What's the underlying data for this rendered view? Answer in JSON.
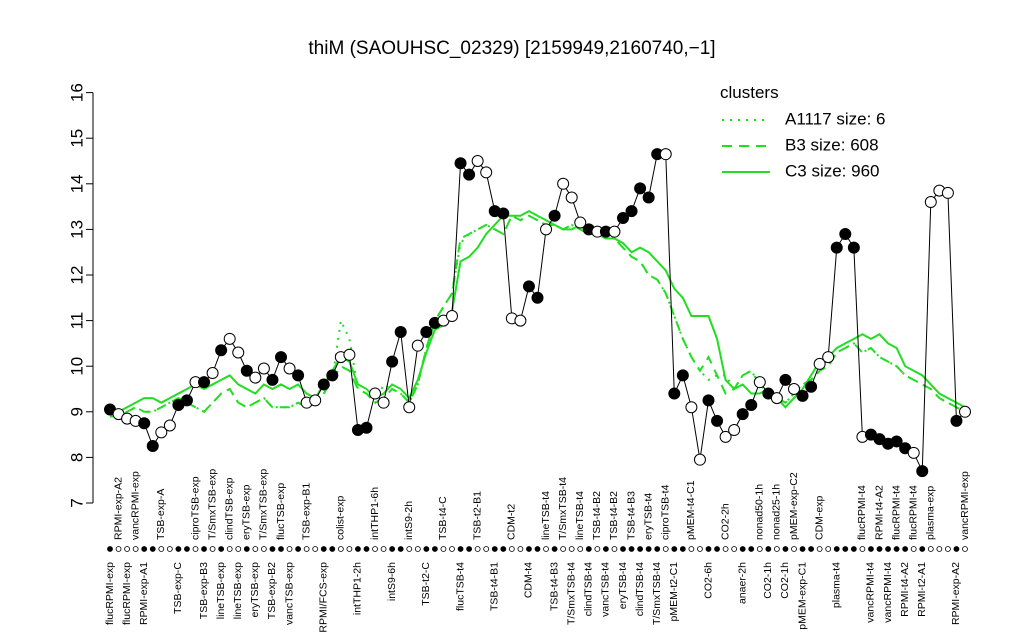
{
  "chart_data": {
    "type": "line",
    "title": "thiM (SAOUHSC_02329) [2159949,2160740,−1]",
    "ylim": [
      7,
      16
    ],
    "yticks": [
      7,
      8,
      9,
      10,
      11,
      12,
      13,
      14,
      15,
      16
    ],
    "line_color": "#000000",
    "categories": [
      "flucRPMI-exp",
      "RPMI-exp-A2",
      "flucRPMI-exp",
      "vancRPMI-exp",
      "RPMI-exp-A1",
      null,
      "TSB-exp-A",
      null,
      "TSB-exp-C",
      null,
      "ciproTSB-exp",
      "TSB-exp-B3",
      "T/SmxTSB-exp",
      "lineTSB-exp",
      "clindTSB-exp",
      "lineTSB-exp",
      "eryTSB-exp",
      "eryTSB-exp",
      "T/SmxTSB-exp",
      "TSB-exp-B2",
      "flucTSB-exp",
      "vancTSB-exp",
      null,
      "TSB-exp-B1",
      null,
      "RPMI/FCS-exp",
      null,
      "colist-exp",
      null,
      "intTHP1-2h",
      null,
      "intTHP1-6h",
      null,
      "intS9-6h",
      null,
      "intS9-2h",
      null,
      "TSB-t2-C",
      null,
      "TSB-t4-C",
      null,
      "flucTSB-t4",
      null,
      "TSB-t2-B1",
      null,
      "TSB-t4-B1",
      null,
      "CDM-t2",
      null,
      "CDM-t4",
      null,
      "lineTSB-t4",
      "TSB-t4-B3",
      "T/SmxTSB-t4",
      "T/SmxTSB-t4",
      "lineTSB-t4",
      "clindTSB-t4",
      "TSB-t4-B2",
      "vancTSB-t4",
      "TSB-t4-B2",
      "eryTSB-t4",
      "TSB-t4-B3",
      "clindTSB-t4",
      "eryTSB-t4",
      "T/SmxTSB-t4",
      "ciproTSB-t4",
      "pMEM-t2-C1",
      null,
      "pMEM-t4-C1",
      null,
      "CO2-6h",
      null,
      "CO2-2h",
      null,
      "anaer-2h",
      null,
      "nonad50-1h",
      "CO2-1h",
      "nonad25-1h",
      "CO2-1h",
      "pMEM-exp-C2",
      "pMEM-exp-C1",
      null,
      "CDM-exp",
      null,
      "plasma-t4",
      null,
      null,
      "flucRPMI-t4",
      "vancRPMI-t4",
      "RPMI-t4-A2",
      "vancRPMI-t4",
      "flucRPMI-t4",
      "RPMI-t4-A2",
      "flucRPMI-t4",
      "RPMI-t2-A1",
      "plasma-exp",
      null,
      null,
      "RPMI-exp-A2",
      "vancRPMI-exp"
    ],
    "values": [
      9.05,
      8.95,
      8.85,
      8.8,
      8.75,
      8.25,
      8.55,
      8.7,
      9.15,
      9.25,
      9.65,
      9.65,
      9.85,
      10.35,
      10.6,
      10.3,
      9.9,
      9.75,
      9.95,
      9.7,
      10.2,
      9.95,
      9.8,
      9.2,
      9.25,
      9.6,
      9.8,
      10.2,
      10.25,
      8.6,
      8.65,
      9.4,
      9.2,
      10.1,
      10.75,
      9.1,
      10.45,
      10.75,
      10.95,
      11.0,
      11.1,
      14.45,
      14.2,
      14.5,
      14.25,
      13.4,
      13.35,
      11.05,
      11.0,
      11.75,
      11.5,
      13.0,
      13.3,
      14.0,
      13.7,
      13.15,
      13.0,
      12.95,
      12.95,
      12.95,
      13.25,
      13.4,
      13.9,
      13.7,
      14.65,
      14.65,
      9.4,
      9.8,
      9.1,
      7.95,
      9.25,
      8.8,
      8.45,
      8.6,
      8.95,
      9.15,
      9.65,
      9.4,
      9.3,
      9.7,
      9.5,
      9.35,
      9.55,
      10.05,
      10.2,
      12.6,
      12.9,
      12.6,
      8.45,
      8.5,
      8.4,
      8.3,
      8.35,
      8.2,
      8.1,
      7.7,
      13.6,
      13.85,
      13.8,
      8.8,
      9.0
    ],
    "marker_fills": [
      "black",
      "white",
      "white",
      "white",
      "black",
      "black",
      "white",
      "white",
      "black",
      "black",
      "white",
      "black",
      "white",
      "black",
      "white",
      "white",
      "black",
      "white",
      "white",
      "black",
      "black",
      "white",
      "black",
      "white",
      "white",
      "black",
      "black",
      "white",
      "white",
      "black",
      "black",
      "white",
      "white",
      "black",
      "black",
      "white",
      "white",
      "black",
      "black",
      "white",
      "white",
      "black",
      "black",
      "white",
      "white",
      "black",
      "black",
      "white",
      "white",
      "black",
      "black",
      "white",
      "black",
      "white",
      "white",
      "white",
      "black",
      "white",
      "black",
      "white",
      "black",
      "black",
      "black",
      "black",
      "black",
      "white",
      "black",
      "black",
      "white",
      "white",
      "black",
      "black",
      "white",
      "white",
      "black",
      "black",
      "white",
      "black",
      "white",
      "black",
      "white",
      "black",
      "black",
      "white",
      "white",
      "black",
      "black",
      "black",
      "white",
      "black",
      "black",
      "black",
      "black",
      "black",
      "white",
      "black",
      "white",
      "white",
      "white",
      "black",
      "white"
    ],
    "clusters": {
      "title": "clusters",
      "color": "#22dd22",
      "series": [
        {
          "name": "A1117 size: 6",
          "style": "dotted",
          "values": [
            8.9,
            8.9,
            9.0,
            9.1,
            9.0,
            9.0,
            9.1,
            9.2,
            9.3,
            9.2,
            9.1,
            9.0,
            9.2,
            9.4,
            9.5,
            9.2,
            9.1,
            9.2,
            9.3,
            9.1,
            9.1,
            9.1,
            9.2,
            9.1,
            9.2,
            9.4,
            9.7,
            11.0,
            10.6,
            9.5,
            9.4,
            9.2,
            9.6,
            9.5,
            9.4,
            9.2,
            9.6,
            10.4,
            11.0,
            11.3,
            11.6,
            12.7,
            12.9,
            13.0,
            13.1,
            13.0,
            12.9,
            13.3,
            13.2,
            13.3,
            13.2,
            13.1,
            13.1,
            13.0,
            13.1,
            13.0,
            12.9,
            13.0,
            13.0,
            12.8,
            12.6,
            12.4,
            12.3,
            12.0,
            11.9,
            11.6,
            11.1,
            10.6,
            10.2,
            9.9,
            9.7,
            9.8,
            9.8,
            9.5,
            9.8,
            9.9,
            9.6,
            9.4,
            9.3,
            9.2,
            9.4,
            9.6,
            9.7,
            9.9,
            10.0,
            10.3,
            10.4,
            10.5,
            10.3,
            10.4,
            10.2,
            10.1,
            10.0,
            9.8,
            9.7,
            9.6,
            9.5,
            9.3,
            9.2,
            9.1,
            9.0
          ]
        },
        {
          "name": "B3 size: 608",
          "style": "dashed",
          "values": [
            8.9,
            8.9,
            9.0,
            9.1,
            9.0,
            9.0,
            9.1,
            9.2,
            9.3,
            9.2,
            9.1,
            9.0,
            9.2,
            9.4,
            9.5,
            9.2,
            9.1,
            9.2,
            9.3,
            9.1,
            9.1,
            9.1,
            9.2,
            9.1,
            9.2,
            9.4,
            9.7,
            10.0,
            9.9,
            9.5,
            9.4,
            9.2,
            9.3,
            9.5,
            9.4,
            9.2,
            9.6,
            10.4,
            11.0,
            11.3,
            11.6,
            12.8,
            12.9,
            13.0,
            13.1,
            13.0,
            12.9,
            13.3,
            13.2,
            13.3,
            13.2,
            13.1,
            13.1,
            13.0,
            13.1,
            13.0,
            12.9,
            13.0,
            13.0,
            12.8,
            12.6,
            12.4,
            12.3,
            12.0,
            11.9,
            11.6,
            11.1,
            10.6,
            10.2,
            9.9,
            10.2,
            9.8,
            9.4,
            9.5,
            9.8,
            9.9,
            9.6,
            9.4,
            9.3,
            9.2,
            9.4,
            9.6,
            9.7,
            9.9,
            10.0,
            10.3,
            10.4,
            10.5,
            10.3,
            10.4,
            10.2,
            10.1,
            10.0,
            9.8,
            9.7,
            9.6,
            9.5,
            9.3,
            9.2,
            9.1,
            9.0
          ]
        },
        {
          "name": "C3 size: 960",
          "style": "solid",
          "values": [
            9.0,
            9.0,
            9.1,
            9.2,
            9.3,
            9.3,
            9.2,
            9.3,
            9.4,
            9.5,
            9.6,
            9.5,
            9.6,
            9.7,
            9.8,
            9.6,
            9.5,
            9.4,
            9.6,
            9.5,
            9.6,
            9.5,
            9.6,
            9.4,
            9.3,
            9.6,
            9.9,
            10.2,
            10.1,
            9.6,
            9.5,
            9.3,
            9.4,
            9.6,
            9.5,
            9.3,
            9.7,
            10.3,
            10.8,
            10.9,
            11.2,
            12.3,
            12.4,
            12.6,
            12.9,
            13.1,
            13.3,
            13.3,
            13.3,
            13.4,
            13.3,
            13.2,
            13.1,
            13.0,
            13.0,
            13.1,
            12.9,
            12.9,
            12.8,
            12.8,
            12.7,
            12.5,
            12.6,
            12.5,
            12.3,
            12.1,
            11.7,
            11.5,
            11.1,
            11.1,
            11.1,
            10.6,
            9.7,
            9.5,
            9.6,
            9.4,
            9.4,
            9.5,
            9.3,
            9.1,
            9.3,
            9.5,
            9.8,
            10.1,
            10.2,
            10.4,
            10.5,
            10.6,
            10.7,
            10.6,
            10.7,
            10.5,
            10.4,
            10.0,
            9.9,
            9.8,
            9.6,
            9.4,
            9.3,
            9.2,
            9.1
          ]
        }
      ]
    }
  }
}
